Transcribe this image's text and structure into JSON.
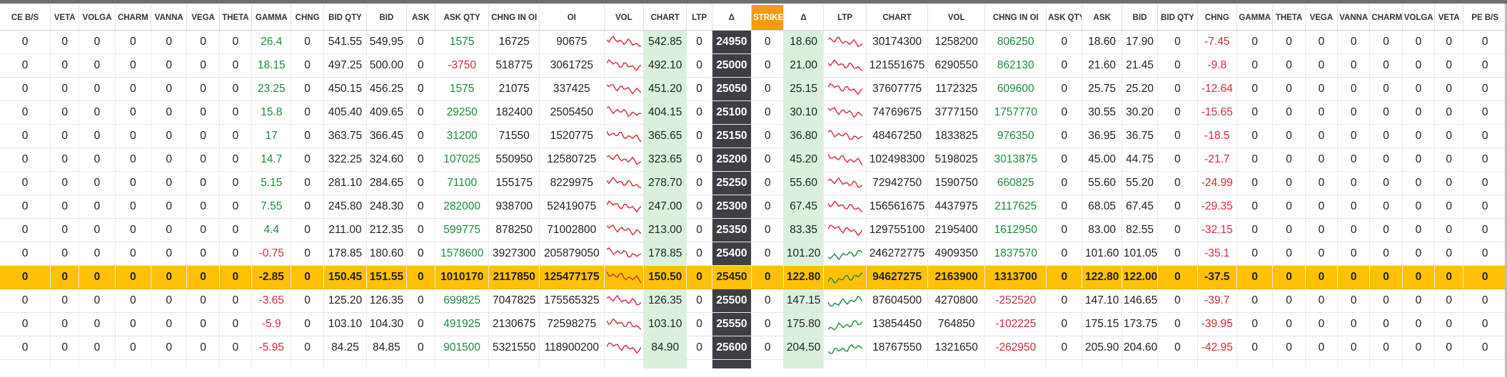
{
  "headers": [
    "CE B/S",
    "VETA",
    "VOLGA",
    "CHARM",
    "VANNA",
    "VEGA",
    "THETA",
    "GAMMA",
    "CHNG",
    "BID QTY",
    "BID",
    "ASK",
    "ASK QTY",
    "CHNG IN OI",
    "OI",
    "VOL",
    "CHART",
    "LTP",
    "Δ",
    "STRIKE",
    "Δ",
    "LTP",
    "CHART",
    "VOL",
    "CHNG IN OI",
    "ASK QTY",
    "ASK",
    "BID",
    "BID QTY",
    "CHNG",
    "GAMMA",
    "THETA",
    "VEGA",
    "VANNA",
    "CHARM",
    "VOLGA",
    "VETA",
    "PE B/S"
  ],
  "colors": {
    "positive": "#1e8a3e",
    "negative": "#d9283c",
    "strike_header": "#f39c12",
    "atm_row": "#ffc107",
    "chart_bg": "#d9f0dc",
    "strike_bg": "#3c3f43",
    "spark_red": "#d9283c",
    "spark_green": "#1e8a3e"
  },
  "rows": [
    {
      "ce_bs": "",
      "veta": "0",
      "volga": "0",
      "charm": "0",
      "vanna": "0",
      "vega": "0",
      "theta": "0",
      "gamma": "26.4",
      "chng": "0",
      "bid_qty": "541.55",
      "bid": "549.95",
      "ask": "0",
      "ask_qty": "1575",
      "chng_oi": "16725",
      "oi": "90675",
      "ce_chart": "542.85",
      "ce_ltp": "0",
      "ce_delta": "24950",
      "strike": "0",
      "pe_delta": "18.60",
      "pe_vol": "30174300",
      "pe_chng_oi": "1258200",
      "pe_chng_oi2": "806250",
      "pe_ask_qty": "0",
      "pe_ask": "18.60",
      "pe_bid": "17.90",
      "pe_bid_qty": "0",
      "pe_chng": "-7.45",
      "pe_gamma": "0",
      "pe_theta": "0",
      "pe_vega": "0",
      "pe_vanna": "0",
      "pe_charm": "0",
      "pe_volga": "0",
      "pe_veta": "0",
      "pe_bs": "0"
    },
    {
      "ce_bs": "",
      "veta": "0",
      "volga": "0",
      "charm": "0",
      "vanna": "0",
      "vega": "0",
      "theta": "0",
      "gamma": "18.15",
      "chng": "0",
      "bid_qty": "497.25",
      "bid": "500.00",
      "ask": "0",
      "ask_qty": "-3750",
      "chng_oi": "518775",
      "oi": "3061725",
      "ce_chart": "492.10",
      "ce_ltp": "0",
      "ce_delta": "25000",
      "strike": "0",
      "pe_delta": "21.00",
      "pe_vol": "121551675",
      "pe_chng_oi": "6290550",
      "pe_chng_oi2": "862130",
      "pe_ask_qty": "0",
      "pe_ask": "21.60",
      "pe_bid": "21.45",
      "pe_bid_qty": "0",
      "pe_chng": "-9.8",
      "pe_gamma": "0",
      "pe_theta": "0",
      "pe_vega": "0",
      "pe_vanna": "0",
      "pe_charm": "0",
      "pe_volga": "0",
      "pe_veta": "0",
      "pe_bs": "0"
    },
    {
      "ce_bs": "",
      "veta": "0",
      "volga": "0",
      "charm": "0",
      "vanna": "0",
      "vega": "0",
      "theta": "0",
      "gamma": "23.25",
      "chng": "0",
      "bid_qty": "450.15",
      "bid": "456.25",
      "ask": "0",
      "ask_qty": "1575",
      "chng_oi": "21075",
      "oi": "337425",
      "ce_chart": "451.20",
      "ce_ltp": "0",
      "ce_delta": "25050",
      "strike": "0",
      "pe_delta": "25.15",
      "pe_vol": "37607775",
      "pe_chng_oi": "1172325",
      "pe_chng_oi2": "609600",
      "pe_ask_qty": "0",
      "pe_ask": "25.75",
      "pe_bid": "25.20",
      "pe_bid_qty": "0",
      "pe_chng": "-12.64",
      "pe_gamma": "0",
      "pe_theta": "0",
      "pe_vega": "0",
      "pe_vanna": "0",
      "pe_charm": "0",
      "pe_volga": "0",
      "pe_veta": "0",
      "pe_bs": "0"
    },
    {
      "ce_bs": "",
      "veta": "0",
      "volga": "0",
      "charm": "0",
      "vanna": "0",
      "vega": "0",
      "theta": "0",
      "gamma": "15.8",
      "chng": "0",
      "bid_qty": "405.40",
      "bid": "409.65",
      "ask": "0",
      "ask_qty": "29250",
      "chng_oi": "182400",
      "oi": "2505450",
      "ce_chart": "404.15",
      "ce_ltp": "0",
      "ce_delta": "25100",
      "strike": "0",
      "pe_delta": "30.10",
      "pe_vol": "74769675",
      "pe_chng_oi": "3777150",
      "pe_chng_oi2": "1757770",
      "pe_ask_qty": "0",
      "pe_ask": "30.55",
      "pe_bid": "30.20",
      "pe_bid_qty": "0",
      "pe_chng": "-15.65",
      "pe_gamma": "0",
      "pe_theta": "0",
      "pe_vega": "0",
      "pe_vanna": "0",
      "pe_charm": "0",
      "pe_volga": "0",
      "pe_veta": "0",
      "pe_bs": "0"
    },
    {
      "ce_bs": "",
      "veta": "0",
      "volga": "0",
      "charm": "0",
      "vanna": "0",
      "vega": "0",
      "theta": "0",
      "gamma": "17",
      "chng": "0",
      "bid_qty": "363.75",
      "bid": "366.45",
      "ask": "0",
      "ask_qty": "31200",
      "chng_oi": "71550",
      "oi": "1520775",
      "ce_chart": "365.65",
      "ce_ltp": "0",
      "ce_delta": "25150",
      "strike": "0",
      "pe_delta": "36.80",
      "pe_vol": "48467250",
      "pe_chng_oi": "1833825",
      "pe_chng_oi2": "976350",
      "pe_ask_qty": "0",
      "pe_ask": "36.95",
      "pe_bid": "36.75",
      "pe_bid_qty": "0",
      "pe_chng": "-18.5",
      "pe_gamma": "0",
      "pe_theta": "0",
      "pe_vega": "0",
      "pe_vanna": "0",
      "pe_charm": "0",
      "pe_volga": "0",
      "pe_veta": "0",
      "pe_bs": "0"
    },
    {
      "ce_bs": "",
      "veta": "0",
      "volga": "0",
      "charm": "0",
      "vanna": "0",
      "vega": "0",
      "theta": "0",
      "gamma": "14.7",
      "chng": "0",
      "bid_qty": "322.25",
      "bid": "324.60",
      "ask": "0",
      "ask_qty": "107025",
      "chng_oi": "550950",
      "oi": "12580725",
      "ce_chart": "323.65",
      "ce_ltp": "0",
      "ce_delta": "25200",
      "strike": "0",
      "pe_delta": "45.20",
      "pe_vol": "102498300",
      "pe_chng_oi": "5198025",
      "pe_chng_oi2": "3013875",
      "pe_ask_qty": "0",
      "pe_ask": "45.00",
      "pe_bid": "44.75",
      "pe_bid_qty": "0",
      "pe_chng": "-21.7",
      "pe_gamma": "0",
      "pe_theta": "0",
      "pe_vega": "0",
      "pe_vanna": "0",
      "pe_charm": "0",
      "pe_volga": "0",
      "pe_veta": "0",
      "pe_bs": "0"
    },
    {
      "ce_bs": "",
      "veta": "0",
      "volga": "0",
      "charm": "0",
      "vanna": "0",
      "vega": "0",
      "theta": "0",
      "gamma": "5.15",
      "chng": "0",
      "bid_qty": "281.10",
      "bid": "284.65",
      "ask": "0",
      "ask_qty": "71100",
      "chng_oi": "155175",
      "oi": "8229975",
      "ce_chart": "278.70",
      "ce_ltp": "0",
      "ce_delta": "25250",
      "strike": "0",
      "pe_delta": "55.60",
      "pe_vol": "72942750",
      "pe_chng_oi": "1590750",
      "pe_chng_oi2": "660825",
      "pe_ask_qty": "0",
      "pe_ask": "55.60",
      "pe_bid": "55.20",
      "pe_bid_qty": "0",
      "pe_chng": "-24.99",
      "pe_gamma": "0",
      "pe_theta": "0",
      "pe_vega": "0",
      "pe_vanna": "0",
      "pe_charm": "0",
      "pe_volga": "0",
      "pe_veta": "0",
      "pe_bs": "0"
    },
    {
      "ce_bs": "",
      "veta": "0",
      "volga": "0",
      "charm": "0",
      "vanna": "0",
      "vega": "0",
      "theta": "0",
      "gamma": "7.55",
      "chng": "0",
      "bid_qty": "245.80",
      "bid": "248.30",
      "ask": "0",
      "ask_qty": "282000",
      "chng_oi": "938700",
      "oi": "52419075",
      "ce_chart": "247.00",
      "ce_ltp": "0",
      "ce_delta": "25300",
      "strike": "0",
      "pe_delta": "67.45",
      "pe_vol": "156561675",
      "pe_chng_oi": "4437975",
      "pe_chng_oi2": "2117625",
      "pe_ask_qty": "0",
      "pe_ask": "68.05",
      "pe_bid": "67.45",
      "pe_bid_qty": "0",
      "pe_chng": "-29.35",
      "pe_gamma": "0",
      "pe_theta": "0",
      "pe_vega": "0",
      "pe_vanna": "0",
      "pe_charm": "0",
      "pe_volga": "0",
      "pe_veta": "0",
      "pe_bs": "0"
    },
    {
      "ce_bs": "",
      "veta": "0",
      "volga": "0",
      "charm": "0",
      "vanna": "0",
      "vega": "0",
      "theta": "0",
      "gamma": "4.4",
      "chng": "0",
      "bid_qty": "211.00",
      "bid": "212.35",
      "ask": "0",
      "ask_qty": "599775",
      "chng_oi": "878250",
      "oi": "71002800",
      "ce_chart": "213.00",
      "ce_ltp": "0",
      "ce_delta": "25350",
      "strike": "0",
      "pe_delta": "83.35",
      "pe_vol": "129755100",
      "pe_chng_oi": "2195400",
      "pe_chng_oi2": "1612950",
      "pe_ask_qty": "0",
      "pe_ask": "83.00",
      "pe_bid": "82.55",
      "pe_bid_qty": "0",
      "pe_chng": "-32.15",
      "pe_gamma": "0",
      "pe_theta": "0",
      "pe_vega": "0",
      "pe_vanna": "0",
      "pe_charm": "0",
      "pe_volga": "0",
      "pe_veta": "0",
      "pe_bs": "0"
    },
    {
      "ce_bs": "",
      "veta": "0",
      "volga": "0",
      "charm": "0",
      "vanna": "0",
      "vega": "0",
      "theta": "0",
      "gamma": "-0.75",
      "chng": "0",
      "bid_qty": "178.85",
      "bid": "180.60",
      "ask": "0",
      "ask_qty": "1578600",
      "chng_oi": "3927300",
      "oi": "205879050",
      "ce_chart": "178.85",
      "ce_ltp": "0",
      "ce_delta": "25400",
      "strike": "0",
      "pe_delta": "101.20",
      "pe_vol": "246272775",
      "pe_chng_oi": "4909350",
      "pe_chng_oi2": "1837570",
      "pe_ask_qty": "0",
      "pe_ask": "101.60",
      "pe_bid": "101.05",
      "pe_bid_qty": "0",
      "pe_chng": "-35.1",
      "pe_gamma": "0",
      "pe_theta": "0",
      "pe_vega": "0",
      "pe_vanna": "0",
      "pe_charm": "0",
      "pe_volga": "0",
      "pe_veta": "0",
      "pe_bs": "0"
    },
    {
      "ce_bs": "",
      "veta": "0",
      "volga": "0",
      "charm": "0",
      "vanna": "0",
      "vega": "0",
      "theta": "0",
      "gamma": "-2.85",
      "chng": "0",
      "bid_qty": "150.45",
      "bid": "151.55",
      "ask": "0",
      "ask_qty": "1010170",
      "chng_oi": "2117850",
      "oi": "125477175",
      "ce_chart": "150.50",
      "ce_ltp": "0",
      "ce_delta": "25450",
      "strike": "0",
      "pe_delta": "122.80",
      "pe_vol": "94627275",
      "pe_chng_oi": "2163900",
      "pe_chng_oi2": "1313700",
      "pe_ask_qty": "0",
      "pe_ask": "122.80",
      "pe_bid": "122.00",
      "pe_bid_qty": "0",
      "pe_chng": "-37.5",
      "pe_gamma": "0",
      "pe_theta": "0",
      "pe_vega": "0",
      "pe_vanna": "0",
      "pe_charm": "0",
      "pe_volga": "0",
      "pe_veta": "0",
      "pe_bs": "0"
    },
    {
      "ce_bs": "",
      "veta": "0",
      "volga": "0",
      "charm": "0",
      "vanna": "0",
      "vega": "0",
      "theta": "0",
      "gamma": "-3.65",
      "chng": "0",
      "bid_qty": "125.20",
      "bid": "126.35",
      "ask": "0",
      "ask_qty": "699825",
      "chng_oi": "7047825",
      "oi": "175565325",
      "ce_chart": "126.35",
      "ce_ltp": "0",
      "ce_delta": "25500",
      "strike": "0",
      "pe_delta": "147.15",
      "pe_vol": "87604500",
      "pe_chng_oi": "4270800",
      "pe_chng_oi2": "-252520",
      "pe_ask_qty": "0",
      "pe_ask": "147.10",
      "pe_bid": "146.65",
      "pe_bid_qty": "0",
      "pe_chng": "-39.7",
      "pe_gamma": "0",
      "pe_theta": "0",
      "pe_vega": "0",
      "pe_vanna": "0",
      "pe_charm": "0",
      "pe_volga": "0",
      "pe_veta": "0",
      "pe_bs": "0"
    },
    {
      "ce_bs": "",
      "veta": "0",
      "volga": "0",
      "charm": "0",
      "vanna": "0",
      "vega": "0",
      "theta": "0",
      "gamma": "-5.9",
      "chng": "0",
      "bid_qty": "103.10",
      "bid": "104.30",
      "ask": "0",
      "ask_qty": "491925",
      "chng_oi": "2130675",
      "oi": "72598275",
      "ce_chart": "103.10",
      "ce_ltp": "0",
      "ce_delta": "25550",
      "strike": "0",
      "pe_delta": "175.80",
      "pe_vol": "13854450",
      "pe_chng_oi": "764850",
      "pe_chng_oi2": "-102225",
      "pe_ask_qty": "0",
      "pe_ask": "175.15",
      "pe_bid": "173.75",
      "pe_bid_qty": "0",
      "pe_chng": "-39.95",
      "pe_gamma": "0",
      "pe_theta": "0",
      "pe_vega": "0",
      "pe_vanna": "0",
      "pe_charm": "0",
      "pe_volga": "0",
      "pe_veta": "0",
      "pe_bs": "0"
    },
    {
      "ce_bs": "",
      "veta": "0",
      "volga": "0",
      "charm": "0",
      "vanna": "0",
      "vega": "0",
      "theta": "0",
      "gamma": "-5.95",
      "chng": "0",
      "bid_qty": "84.25",
      "bid": "84.85",
      "ask": "0",
      "ask_qty": "901500",
      "chng_oi": "5321550",
      "oi": "118900200",
      "ce_chart": "84.90",
      "ce_ltp": "0",
      "ce_delta": "25600",
      "strike": "0",
      "pe_delta": "204.50",
      "pe_vol": "18767550",
      "pe_chng_oi": "1321650",
      "pe_chng_oi2": "-262950",
      "pe_ask_qty": "0",
      "pe_ask": "205.90",
      "pe_bid": "204.60",
      "pe_bid_qty": "0",
      "pe_chng": "-42.95",
      "pe_gamma": "0",
      "pe_theta": "0",
      "pe_vega": "0",
      "pe_vanna": "0",
      "pe_charm": "0",
      "pe_volga": "0",
      "pe_veta": "0",
      "pe_bs": "0"
    }
  ],
  "atm_row_index": 10,
  "ce_spark_color": [
    "red",
    "red",
    "red",
    "red",
    "red",
    "red",
    "red",
    "red",
    "red",
    "red",
    "red",
    "red",
    "red",
    "red"
  ],
  "pe_spark_color": [
    "red",
    "red",
    "red",
    "red",
    "red",
    "red",
    "red",
    "red",
    "red",
    "green",
    "green",
    "green",
    "green",
    "green"
  ]
}
